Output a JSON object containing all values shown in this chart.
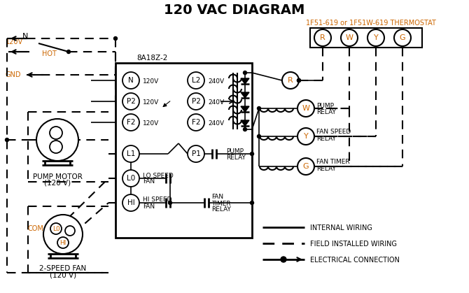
{
  "title": "120 VAC DIAGRAM",
  "title_color": "#000000",
  "title_fontsize": 14,
  "bg_color": "#ffffff",
  "line_color": "#000000",
  "orange_color": "#cc6600",
  "thermostat_label": "1F51-619 or 1F51W-619 THERMOSTAT",
  "board_label": "8A18Z-2",
  "terminal_labels_rwg": [
    "R",
    "W",
    "Y",
    "G"
  ],
  "board_terminals_left": [
    "N",
    "P2",
    "F2"
  ],
  "board_terminals_right": [
    "L2",
    "P2",
    "F2"
  ],
  "board_voltages_left": [
    "120V",
    "120V",
    "120V"
  ],
  "board_voltages_right": [
    "240V",
    "240V",
    "240V"
  ],
  "legend_items": [
    "INTERNAL WIRING",
    "FIELD INSTALLED WIRING",
    "ELECTRICAL CONNECTION"
  ],
  "pump_motor_label": "PUMP MOTOR\n(120 V)",
  "fan_label": "2-SPEED FAN\n(120 V)"
}
